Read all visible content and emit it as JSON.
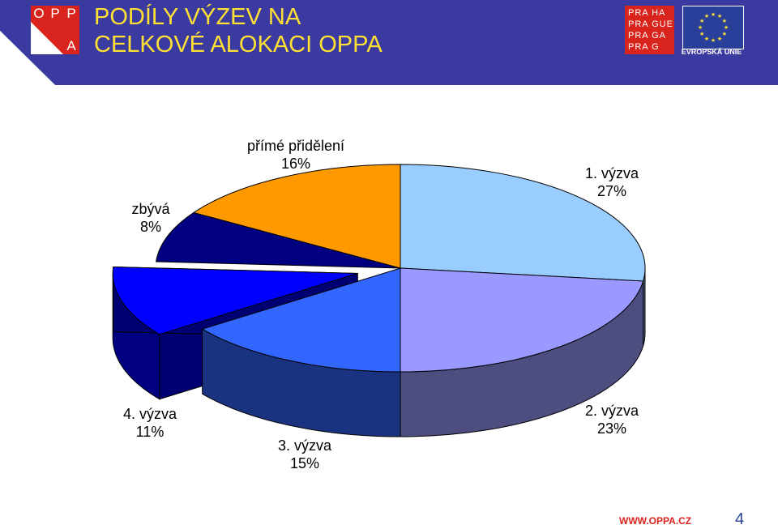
{
  "header": {
    "title_line1": "PODÍLY VÝZEV NA",
    "title_line2": "CELKOVÉ ALOKACI OPPA",
    "opp_logo": [
      "O",
      "P",
      "P",
      "A"
    ],
    "praha_logo": [
      "PRA HA",
      "PRA GUE",
      "PRA GA",
      "PRA G"
    ],
    "eu_label": "EVROPSKÁ UNIE",
    "colors": {
      "band": "#3a3aa0",
      "title": "#ffe033",
      "logo_red": "#d8241c"
    }
  },
  "chart_data": {
    "type": "pie",
    "style": "3d-exploded",
    "slices": [
      {
        "label": "1. výzva",
        "value": 27,
        "value_label": "27%",
        "color": "#99ccff"
      },
      {
        "label": "2. výzva",
        "value": 23,
        "value_label": "23%",
        "color": "#9999ff"
      },
      {
        "label": "3. výzva",
        "value": 15,
        "value_label": "15%",
        "color": "#3366ff"
      },
      {
        "label": "4. výzva",
        "value": 11,
        "value_label": "11%",
        "color": "#0000ff"
      },
      {
        "label": "zbývá",
        "value": 8,
        "value_label": "8%",
        "color": "#000080"
      },
      {
        "label": "přímé přidělení",
        "value": 16,
        "value_label": "16%",
        "color": "#ff9900"
      }
    ],
    "exploded": [
      "4. výzva"
    ]
  },
  "footer": {
    "url": "WWW.OPPA.CZ",
    "page_number": "4"
  }
}
